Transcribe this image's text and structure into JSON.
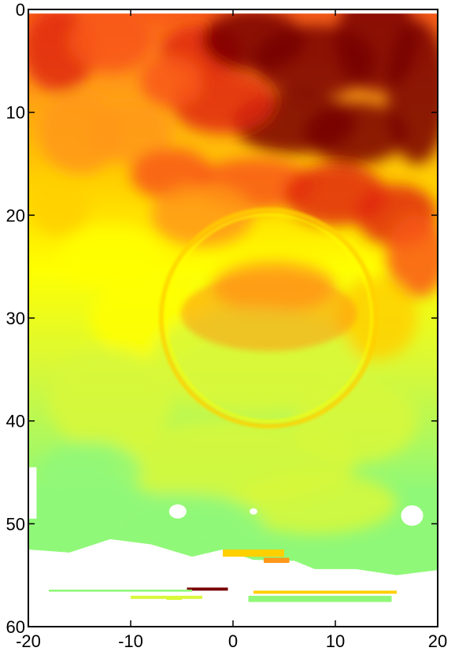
{
  "chart_data": {
    "type": "heatmap",
    "title": "",
    "xlabel": "",
    "ylabel": "",
    "xlim": [
      -20,
      20
    ],
    "ylim": [
      0,
      60
    ],
    "y_reversed": true,
    "x_ticks": [
      "-20",
      "-10",
      "0",
      "10",
      "20"
    ],
    "x_tick_values": [
      -20,
      -10,
      0,
      10,
      20
    ],
    "y_ticks": [
      "0",
      "10",
      "20",
      "30",
      "40",
      "50",
      "60"
    ],
    "y_tick_values": [
      0,
      10,
      20,
      30,
      40,
      50,
      60
    ],
    "colormap": [
      "#90f878",
      "#d8f838",
      "#ffff00",
      "#ffd000",
      "#ff9818",
      "#f85818",
      "#e02810",
      "#780000"
    ],
    "missing_color": "#ffffff",
    "grid": false,
    "legend": "none",
    "features": {
      "ring": {
        "center": [
          3.5,
          30
        ],
        "radius_x": 10.5,
        "radius_y": 10.5
      },
      "bottom_stripe_y": 57
    }
  }
}
